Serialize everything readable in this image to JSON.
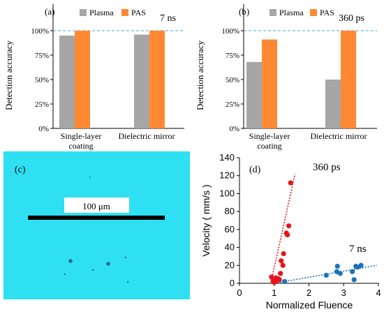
{
  "colors": {
    "plasma": "#a6a6a6",
    "pas": "#ff8833",
    "ns_blue": "#1a73b8",
    "ps_red": "#e8141b",
    "ref_line": "#4aa3d8",
    "micrograph_bg": "#2ee0f2"
  },
  "chart_data": [
    {
      "type": "bar",
      "panel_label": "(a)",
      "annotation": "7 ns",
      "ylabel": "Detection  accuracy",
      "categories": [
        "Single-layer coating",
        "Dielectric mirror"
      ],
      "category_labels": [
        [
          "Single-layer",
          "coating"
        ],
        [
          "Dielectric mirror"
        ]
      ],
      "series": [
        {
          "name": "Plasma",
          "values": [
            95,
            96
          ]
        },
        {
          "name": "PAS",
          "values": [
            100,
            100
          ]
        }
      ],
      "ylim": [
        0,
        100
      ],
      "yticks": [
        "0%",
        "25%",
        "50%",
        "75%",
        "100%"
      ],
      "reference_line": 100,
      "legend": "top"
    },
    {
      "type": "bar",
      "panel_label": "(b)",
      "annotation": "360 ps",
      "ylabel": "Detection  accuracy",
      "categories": [
        "Single-layer coating",
        "Dielectric mirror"
      ],
      "category_labels": [
        [
          "Single-layer",
          "coating"
        ],
        [
          "Dielectric mirror"
        ]
      ],
      "series": [
        {
          "name": "Plasma",
          "values": [
            68,
            50
          ]
        },
        {
          "name": "PAS",
          "values": [
            91,
            100
          ]
        }
      ],
      "ylim": [
        0,
        100
      ],
      "yticks": [
        "0%",
        "25%",
        "50%",
        "75%",
        "100%"
      ],
      "reference_line": 100,
      "legend": "top"
    },
    {
      "type": "scatter",
      "panel_label": "(d)",
      "xlabel": "Normalized Fluence",
      "ylabel": "Velocity ( mm/s )",
      "xlim": [
        0,
        4
      ],
      "ylim": [
        0,
        140
      ],
      "xticks": [
        0,
        1,
        2,
        3,
        4
      ],
      "yticks": [
        0,
        20,
        40,
        60,
        80,
        100,
        120,
        140
      ],
      "series": [
        {
          "name": "360 ps",
          "points": [
            [
              0.92,
              7
            ],
            [
              0.97,
              3
            ],
            [
              1.0,
              1
            ],
            [
              1.05,
              6
            ],
            [
              1.08,
              3
            ],
            [
              1.12,
              5
            ],
            [
              1.15,
              4
            ],
            [
              1.18,
              11
            ],
            [
              1.2,
              25
            ],
            [
              1.25,
              20
            ],
            [
              1.27,
              33
            ],
            [
              1.35,
              56
            ],
            [
              1.38,
              54
            ],
            [
              1.42,
              64
            ],
            [
              1.47,
              112
            ]
          ],
          "trend_line": [
            [
              0.9,
              0
            ],
            [
              1.6,
              122
            ]
          ]
        },
        {
          "name": "7 ns",
          "points": [
            [
              1.3,
              2
            ],
            [
              2.5,
              9
            ],
            [
              2.8,
              13
            ],
            [
              2.82,
              19
            ],
            [
              2.9,
              11
            ],
            [
              3.25,
              13
            ],
            [
              3.3,
              4
            ],
            [
              3.35,
              19
            ],
            [
              3.4,
              18
            ],
            [
              3.5,
              20
            ]
          ],
          "trend_line": [
            [
              1.0,
              0
            ],
            [
              3.95,
              20
            ]
          ]
        }
      ]
    }
  ],
  "micrograph": {
    "panel_label": "(c)",
    "scale_label": "100 μm"
  }
}
